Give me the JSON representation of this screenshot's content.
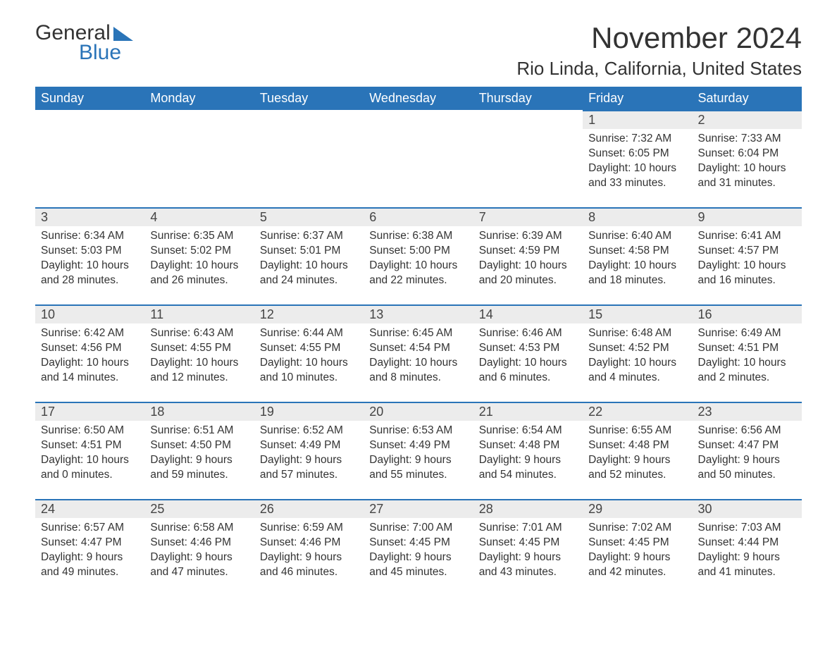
{
  "logo": {
    "general": "General",
    "blue": "Blue"
  },
  "title": "November 2024",
  "location": "Rio Linda, California, United States",
  "colors": {
    "header_bg": "#2a74b8",
    "header_text": "#ffffff",
    "daynum_bg": "#ececec",
    "row_border": "#2a74b8",
    "text": "#333333",
    "page_bg": "#ffffff"
  },
  "weekdays": [
    "Sunday",
    "Monday",
    "Tuesday",
    "Wednesday",
    "Thursday",
    "Friday",
    "Saturday"
  ],
  "weeks": [
    [
      null,
      null,
      null,
      null,
      null,
      {
        "n": "1",
        "sr": "Sunrise: 7:32 AM",
        "ss": "Sunset: 6:05 PM",
        "dl": "Daylight: 10 hours and 33 minutes."
      },
      {
        "n": "2",
        "sr": "Sunrise: 7:33 AM",
        "ss": "Sunset: 6:04 PM",
        "dl": "Daylight: 10 hours and 31 minutes."
      }
    ],
    [
      {
        "n": "3",
        "sr": "Sunrise: 6:34 AM",
        "ss": "Sunset: 5:03 PM",
        "dl": "Daylight: 10 hours and 28 minutes."
      },
      {
        "n": "4",
        "sr": "Sunrise: 6:35 AM",
        "ss": "Sunset: 5:02 PM",
        "dl": "Daylight: 10 hours and 26 minutes."
      },
      {
        "n": "5",
        "sr": "Sunrise: 6:37 AM",
        "ss": "Sunset: 5:01 PM",
        "dl": "Daylight: 10 hours and 24 minutes."
      },
      {
        "n": "6",
        "sr": "Sunrise: 6:38 AM",
        "ss": "Sunset: 5:00 PM",
        "dl": "Daylight: 10 hours and 22 minutes."
      },
      {
        "n": "7",
        "sr": "Sunrise: 6:39 AM",
        "ss": "Sunset: 4:59 PM",
        "dl": "Daylight: 10 hours and 20 minutes."
      },
      {
        "n": "8",
        "sr": "Sunrise: 6:40 AM",
        "ss": "Sunset: 4:58 PM",
        "dl": "Daylight: 10 hours and 18 minutes."
      },
      {
        "n": "9",
        "sr": "Sunrise: 6:41 AM",
        "ss": "Sunset: 4:57 PM",
        "dl": "Daylight: 10 hours and 16 minutes."
      }
    ],
    [
      {
        "n": "10",
        "sr": "Sunrise: 6:42 AM",
        "ss": "Sunset: 4:56 PM",
        "dl": "Daylight: 10 hours and 14 minutes."
      },
      {
        "n": "11",
        "sr": "Sunrise: 6:43 AM",
        "ss": "Sunset: 4:55 PM",
        "dl": "Daylight: 10 hours and 12 minutes."
      },
      {
        "n": "12",
        "sr": "Sunrise: 6:44 AM",
        "ss": "Sunset: 4:55 PM",
        "dl": "Daylight: 10 hours and 10 minutes."
      },
      {
        "n": "13",
        "sr": "Sunrise: 6:45 AM",
        "ss": "Sunset: 4:54 PM",
        "dl": "Daylight: 10 hours and 8 minutes."
      },
      {
        "n": "14",
        "sr": "Sunrise: 6:46 AM",
        "ss": "Sunset: 4:53 PM",
        "dl": "Daylight: 10 hours and 6 minutes."
      },
      {
        "n": "15",
        "sr": "Sunrise: 6:48 AM",
        "ss": "Sunset: 4:52 PM",
        "dl": "Daylight: 10 hours and 4 minutes."
      },
      {
        "n": "16",
        "sr": "Sunrise: 6:49 AM",
        "ss": "Sunset: 4:51 PM",
        "dl": "Daylight: 10 hours and 2 minutes."
      }
    ],
    [
      {
        "n": "17",
        "sr": "Sunrise: 6:50 AM",
        "ss": "Sunset: 4:51 PM",
        "dl": "Daylight: 10 hours and 0 minutes."
      },
      {
        "n": "18",
        "sr": "Sunrise: 6:51 AM",
        "ss": "Sunset: 4:50 PM",
        "dl": "Daylight: 9 hours and 59 minutes."
      },
      {
        "n": "19",
        "sr": "Sunrise: 6:52 AM",
        "ss": "Sunset: 4:49 PM",
        "dl": "Daylight: 9 hours and 57 minutes."
      },
      {
        "n": "20",
        "sr": "Sunrise: 6:53 AM",
        "ss": "Sunset: 4:49 PM",
        "dl": "Daylight: 9 hours and 55 minutes."
      },
      {
        "n": "21",
        "sr": "Sunrise: 6:54 AM",
        "ss": "Sunset: 4:48 PM",
        "dl": "Daylight: 9 hours and 54 minutes."
      },
      {
        "n": "22",
        "sr": "Sunrise: 6:55 AM",
        "ss": "Sunset: 4:48 PM",
        "dl": "Daylight: 9 hours and 52 minutes."
      },
      {
        "n": "23",
        "sr": "Sunrise: 6:56 AM",
        "ss": "Sunset: 4:47 PM",
        "dl": "Daylight: 9 hours and 50 minutes."
      }
    ],
    [
      {
        "n": "24",
        "sr": "Sunrise: 6:57 AM",
        "ss": "Sunset: 4:47 PM",
        "dl": "Daylight: 9 hours and 49 minutes."
      },
      {
        "n": "25",
        "sr": "Sunrise: 6:58 AM",
        "ss": "Sunset: 4:46 PM",
        "dl": "Daylight: 9 hours and 47 minutes."
      },
      {
        "n": "26",
        "sr": "Sunrise: 6:59 AM",
        "ss": "Sunset: 4:46 PM",
        "dl": "Daylight: 9 hours and 46 minutes."
      },
      {
        "n": "27",
        "sr": "Sunrise: 7:00 AM",
        "ss": "Sunset: 4:45 PM",
        "dl": "Daylight: 9 hours and 45 minutes."
      },
      {
        "n": "28",
        "sr": "Sunrise: 7:01 AM",
        "ss": "Sunset: 4:45 PM",
        "dl": "Daylight: 9 hours and 43 minutes."
      },
      {
        "n": "29",
        "sr": "Sunrise: 7:02 AM",
        "ss": "Sunset: 4:45 PM",
        "dl": "Daylight: 9 hours and 42 minutes."
      },
      {
        "n": "30",
        "sr": "Sunrise: 7:03 AM",
        "ss": "Sunset: 4:44 PM",
        "dl": "Daylight: 9 hours and 41 minutes."
      }
    ]
  ]
}
